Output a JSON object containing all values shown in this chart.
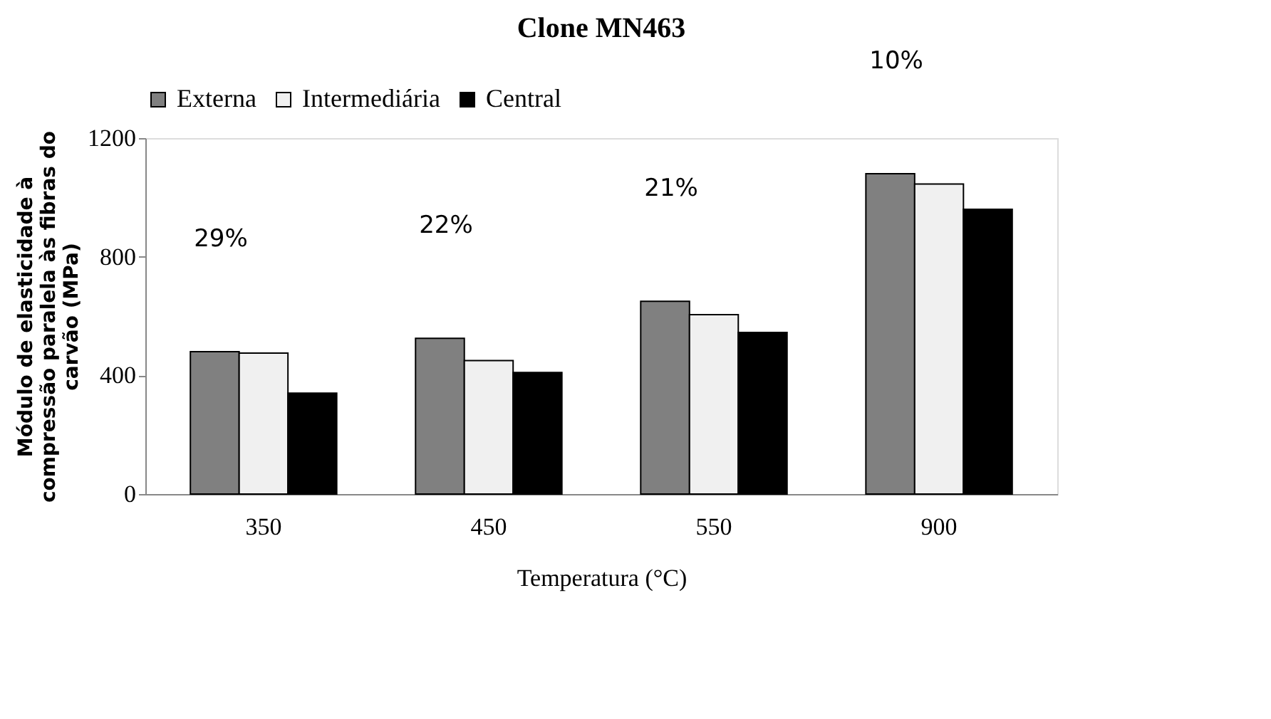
{
  "chart_data": {
    "type": "bar",
    "title": "Clone MN463",
    "xlabel": "Temperatura (°C)",
    "ylabel": "Módulo de elasticidade à\ncompressão paralela às fibras do\ncarvão (MPa)",
    "categories": [
      "350",
      "450",
      "550",
      "900"
    ],
    "series": [
      {
        "name": "Externa",
        "color": "#808080",
        "values": [
          480,
          525,
          650,
          1080
        ]
      },
      {
        "name": "Intermediária",
        "color": "#f0f0f0",
        "values": [
          475,
          450,
          605,
          1045
        ]
      },
      {
        "name": "Central",
        "color": "#000000",
        "values": [
          340,
          410,
          545,
          960
        ]
      }
    ],
    "ylim": [
      0,
      1200
    ],
    "yticks": [
      0,
      400,
      800,
      1200
    ],
    "grid": false,
    "legend": "top",
    "annotations": [
      "29%",
      "22%",
      "21%",
      "10%"
    ]
  }
}
